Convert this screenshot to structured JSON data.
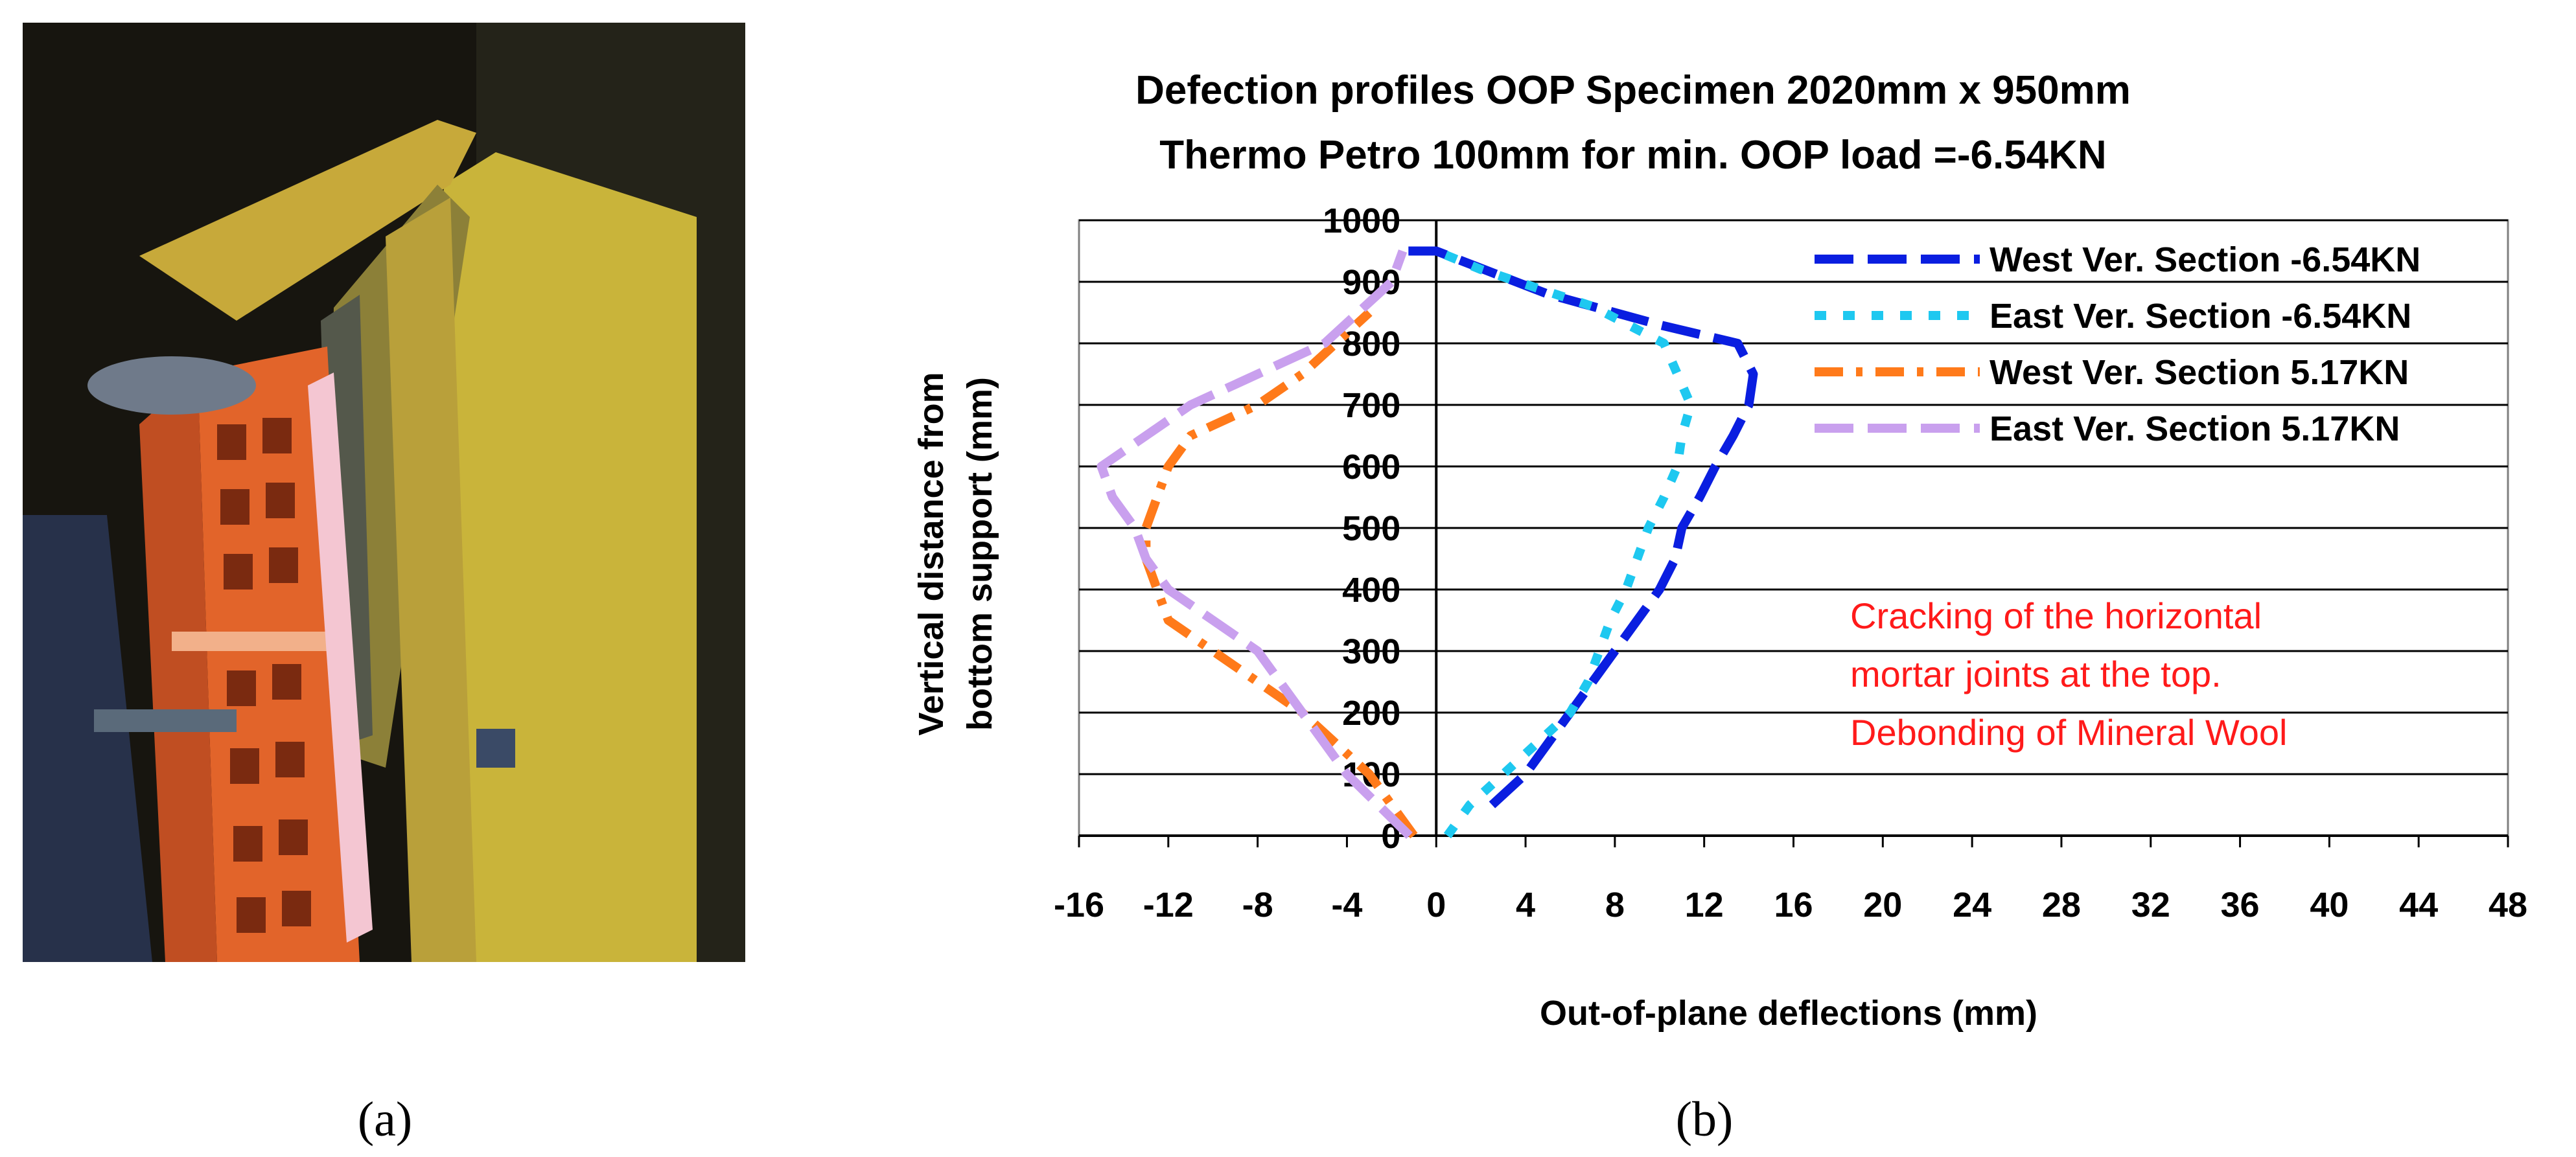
{
  "panels": {
    "a": {
      "label": "(a)",
      "photo_description": "Photo of masonry wall specimen with mineral wool insulation under out-of-plane test"
    },
    "b": {
      "label": "(b)"
    }
  },
  "chart_data": {
    "type": "line",
    "title_line1": "Defection profiles OOP  Specimen 2020mm x 950mm",
    "title_line2": "Thermo Petro 100mm for min. OOP load =-6.54KN",
    "xlabel": "Out-of-plane deflections (mm)",
    "ylabel_line1": "Vertical distance from",
    "ylabel_line2": "bottom support (mm)",
    "xlim": [
      -16,
      48
    ],
    "ylim": [
      0,
      1000
    ],
    "x_ticks": [
      -16,
      -12,
      -8,
      -4,
      0,
      4,
      8,
      12,
      16,
      20,
      24,
      28,
      32,
      36,
      40,
      44,
      48
    ],
    "y_ticks": [
      0,
      100,
      200,
      300,
      400,
      500,
      600,
      700,
      800,
      900,
      1000
    ],
    "grid": "horizontal",
    "legend_position": "top-right",
    "annotation": {
      "lines": [
        "Cracking of the horizontal",
        "mortar joints at the top.",
        "Debonding of Mineral Wool"
      ],
      "color": "#ff1a1a"
    },
    "series": [
      {
        "name": "West Ver. Section  -6.54KN",
        "color": "#0a1ee0",
        "dash": "long",
        "points": [
          [
            2.5,
            50
          ],
          [
            4,
            100
          ],
          [
            5,
            150
          ],
          [
            6,
            200
          ],
          [
            7,
            250
          ],
          [
            8,
            300
          ],
          [
            9,
            350
          ],
          [
            10,
            400
          ],
          [
            10.7,
            450
          ],
          [
            11,
            500
          ],
          [
            11.8,
            550
          ],
          [
            12.5,
            600
          ],
          [
            13.3,
            650
          ],
          [
            14,
            700
          ],
          [
            14.2,
            750
          ],
          [
            13.5,
            800
          ],
          [
            10,
            830
          ],
          [
            5,
            880
          ],
          [
            0,
            950
          ],
          [
            -1.5,
            950
          ]
        ]
      },
      {
        "name": "East Ver. Section  -6.54KN",
        "color": "#1ec8f0",
        "dash": "dot",
        "points": [
          [
            0.5,
            0
          ],
          [
            1.5,
            50
          ],
          [
            3,
            100
          ],
          [
            4.5,
            150
          ],
          [
            6,
            200
          ],
          [
            6.8,
            250
          ],
          [
            7.3,
            300
          ],
          [
            7.8,
            350
          ],
          [
            8.5,
            400
          ],
          [
            9,
            450
          ],
          [
            9.5,
            500
          ],
          [
            10.2,
            550
          ],
          [
            10.8,
            600
          ],
          [
            11,
            650
          ],
          [
            11.4,
            700
          ],
          [
            10.2,
            800
          ],
          [
            7,
            860
          ],
          [
            2,
            920
          ],
          [
            0,
            950
          ]
        ]
      },
      {
        "name": "West Ver. Section  5.17KN",
        "color": "#ff7a1a",
        "dash": "dashdot",
        "points": [
          [
            -1,
            0
          ],
          [
            -3,
            100
          ],
          [
            -6,
            200
          ],
          [
            -8,
            250
          ],
          [
            -10,
            300
          ],
          [
            -12,
            350
          ],
          [
            -12.5,
            400
          ],
          [
            -13,
            450
          ],
          [
            -13,
            500
          ],
          [
            -12.5,
            550
          ],
          [
            -12,
            600
          ],
          [
            -11,
            650
          ],
          [
            -8,
            700
          ],
          [
            -6,
            750
          ],
          [
            -4.5,
            800
          ],
          [
            -3,
            850
          ]
        ]
      },
      {
        "name": "East Ver. Section  5.17KN",
        "color": "#c9a0ee",
        "dash": "long",
        "points": [
          [
            -1.2,
            0
          ],
          [
            -4,
            100
          ],
          [
            -6,
            200
          ],
          [
            -8,
            300
          ],
          [
            -10,
            350
          ],
          [
            -12,
            400
          ],
          [
            -13,
            450
          ],
          [
            -13.5,
            500
          ],
          [
            -14.5,
            550
          ],
          [
            -15,
            600
          ],
          [
            -13,
            650
          ],
          [
            -11,
            700
          ],
          [
            -8,
            750
          ],
          [
            -5,
            800
          ],
          [
            -2,
            900
          ],
          [
            -1.5,
            950
          ]
        ]
      }
    ]
  }
}
